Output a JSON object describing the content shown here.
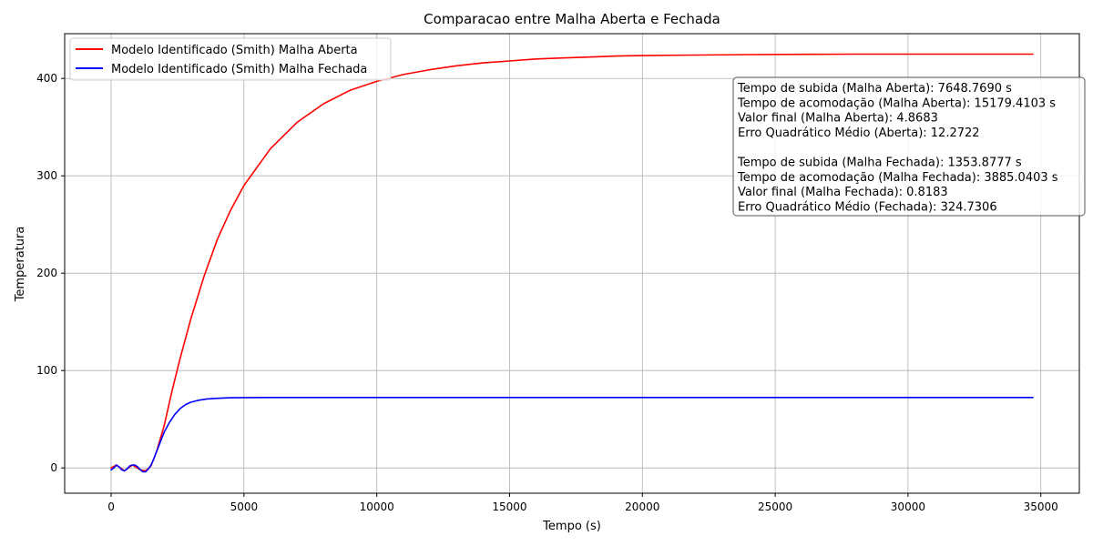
{
  "chart_data": {
    "type": "line",
    "title": "Comparacao entre Malha Aberta e Fechada",
    "xlabel": "Tempo (s)",
    "ylabel": "Temperatura",
    "xlim": [
      -1750,
      36450
    ],
    "ylim": [
      -26,
      446
    ],
    "xticks": [
      0,
      5000,
      10000,
      15000,
      20000,
      25000,
      30000,
      35000
    ],
    "yticks": [
      0,
      100,
      200,
      300,
      400
    ],
    "grid": true,
    "legend_position": "top-left",
    "series": [
      {
        "name": "Modelo Identificado (Smith) Malha Aberta",
        "color": "#ff0000",
        "x": [
          0,
          200,
          500,
          800,
          1100,
          1300,
          1500,
          1700,
          2000,
          2300,
          2600,
          3000,
          3500,
          4000,
          4500,
          5000,
          6000,
          7000,
          8000,
          9000,
          10000,
          11000,
          12000,
          13000,
          14000,
          15000,
          16000,
          17000,
          18000,
          19000,
          20000,
          22000,
          24000,
          26000,
          28000,
          30000,
          32000,
          34000,
          34700
        ],
        "y": [
          0,
          3,
          -3,
          3,
          -2,
          -3,
          2,
          16,
          44,
          80,
          113,
          153,
          197,
          235,
          265,
          290,
          328,
          355,
          374,
          388,
          397,
          404,
          409,
          413,
          416,
          418,
          420,
          421,
          422,
          423,
          423.5,
          424,
          424.5,
          424.8,
          425,
          425,
          425,
          425,
          425
        ]
      },
      {
        "name": "Modelo Identificado (Smith) Malha Fechada",
        "color": "#0000ff",
        "x": [
          0,
          100,
          200,
          300,
          400,
          500,
          600,
          700,
          800,
          900,
          1000,
          1100,
          1200,
          1300,
          1400,
          1500,
          1600,
          1700,
          1800,
          1900,
          2000,
          2200,
          2400,
          2600,
          2800,
          3000,
          3300,
          3600,
          4000,
          4500,
          5000,
          6000,
          8000,
          10000,
          15000,
          20000,
          25000,
          30000,
          34700
        ],
        "y": [
          -2,
          0,
          3,
          1,
          -2,
          -3,
          -1,
          2,
          3,
          3,
          1,
          -2,
          -4,
          -4,
          -1,
          3,
          9,
          16,
          23,
          30,
          37,
          47,
          55,
          61,
          65,
          67.5,
          69.5,
          70.8,
          71.5,
          72,
          72.2,
          72.3,
          72.3,
          72.3,
          72.3,
          72.3,
          72.3,
          72.3,
          72.3
        ]
      }
    ],
    "annotation_lines": [
      "Tempo de subida (Malha Aberta): 7648.7690 s",
      "Tempo de acomodação (Malha Aberta): 15179.4103 s",
      "Valor final (Malha Aberta): 4.8683",
      "Erro Quadrático Médio (Aberta): 12.2722",
      "",
      "Tempo de subida (Malha Fechada): 1353.8777 s",
      "Tempo de acomodação (Malha Fechada): 3885.0403 s",
      "Valor final (Malha Fechada): 0.8183",
      "Erro Quadrático Médio (Fechada): 324.7306"
    ]
  }
}
